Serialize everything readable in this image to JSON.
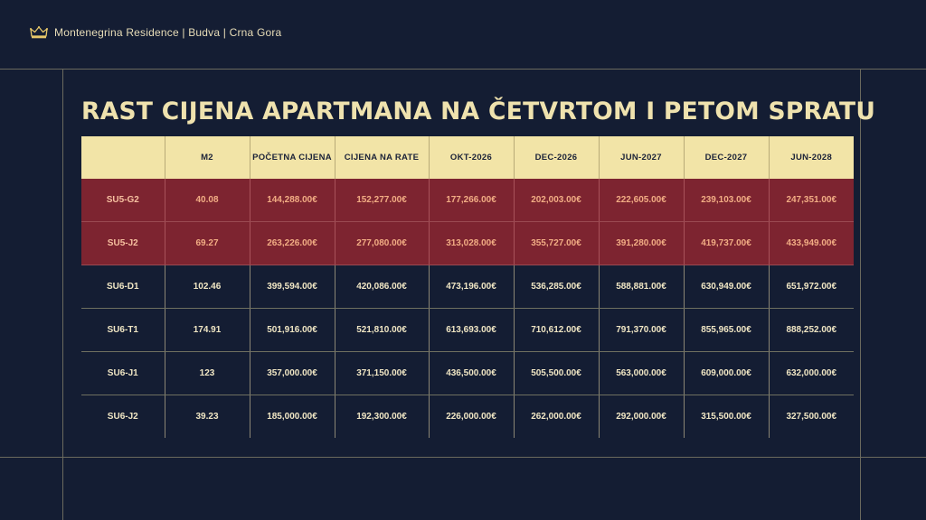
{
  "brand": {
    "text": "Montenegrina Residence | Budva | Crna Gora",
    "icon": "crown-icon",
    "color": "#e8c86a"
  },
  "title": "RAST CIJENA APARTMANA NA ČETVRTOM I PETOM SPRATU",
  "colors": {
    "background": "#141d33",
    "header": "#f2e4a7",
    "highlight_row": "#7d2430",
    "title": "#efe2ae"
  },
  "table": {
    "headers": [
      "",
      "M2",
      "POČETNA CIJENA",
      "CIJENA NA RATE",
      "OKT-2026",
      "DEC-2026",
      "JUN-2027",
      "DEC-2027",
      "JUN-2028"
    ],
    "rows": [
      {
        "highlight": true,
        "cells": [
          "SU5-G2",
          "40.08",
          "144,288.00€",
          "152,277.00€",
          "177,266.00€",
          "202,003.00€",
          "222,605.00€",
          "239,103.00€",
          "247,351.00€"
        ]
      },
      {
        "highlight": true,
        "cells": [
          "SU5-J2",
          "69.27",
          "263,226.00€",
          "277,080.00€",
          "313,028.00€",
          "355,727.00€",
          "391,280.00€",
          "419,737.00€",
          "433,949.00€"
        ]
      },
      {
        "highlight": false,
        "cells": [
          "SU6-D1",
          "102.46",
          "399,594.00€",
          "420,086.00€",
          "473,196.00€",
          "536,285.00€",
          "588,881.00€",
          "630,949.00€",
          "651,972.00€"
        ]
      },
      {
        "highlight": false,
        "cells": [
          "SU6-T1",
          "174.91",
          "501,916.00€",
          "521,810.00€",
          "613,693.00€",
          "710,612.00€",
          "791,370.00€",
          "855,965.00€",
          "888,252.00€"
        ]
      },
      {
        "highlight": false,
        "cells": [
          "SU6-J1",
          "123",
          "357,000.00€",
          "371,150.00€",
          "436,500.00€",
          "505,500.00€",
          "563,000.00€",
          "609,000.00€",
          "632,000.00€"
        ]
      },
      {
        "highlight": false,
        "cells": [
          "SU6-J2",
          "39.23",
          "185,000.00€",
          "192,300.00€",
          "226,000.00€",
          "262,000.00€",
          "292,000.00€",
          "315,500.00€",
          "327,500.00€"
        ]
      }
    ]
  }
}
